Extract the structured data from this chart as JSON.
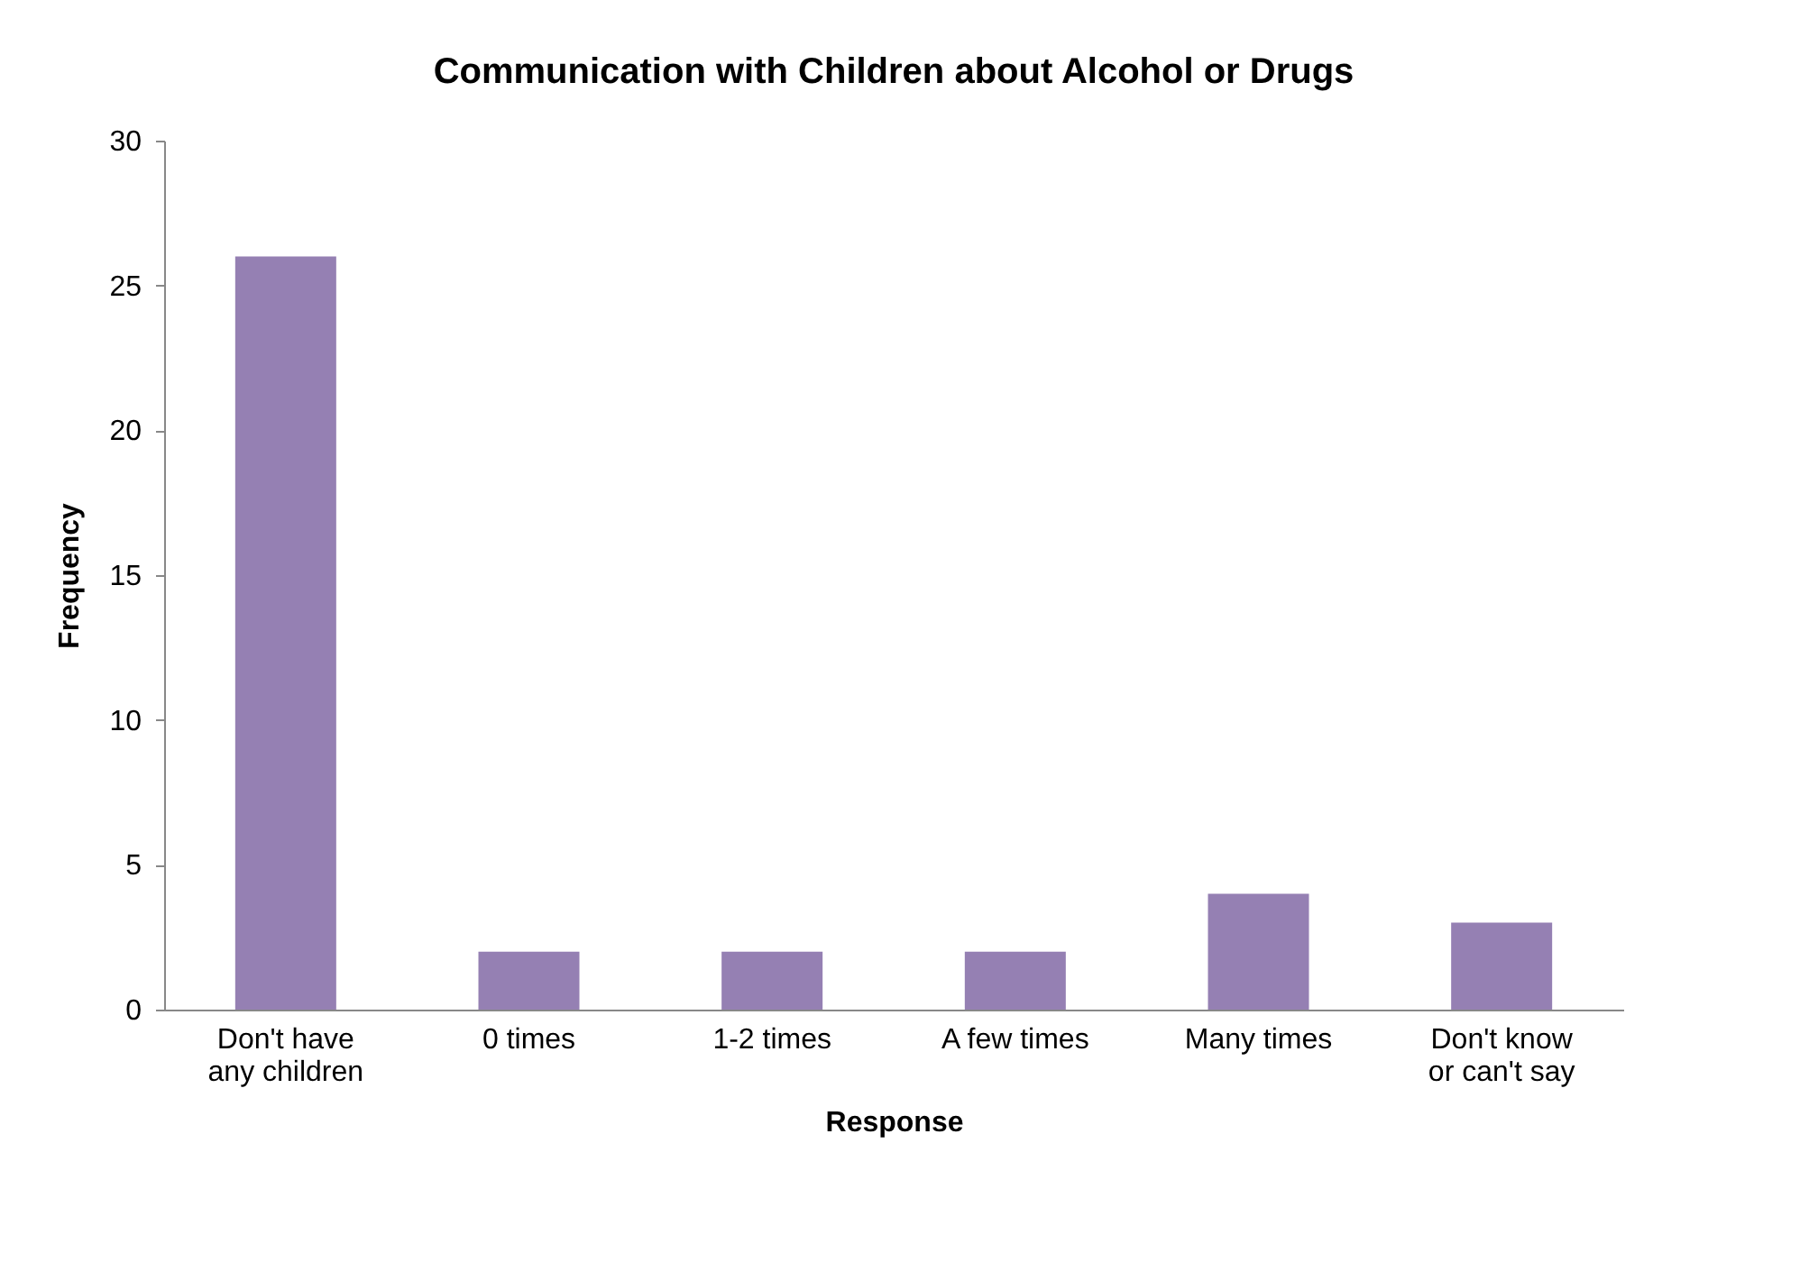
{
  "chart_data": {
    "type": "bar",
    "title": "Communication with Children about Alcohol or Drugs",
    "xlabel": "Response",
    "ylabel": "Frequency",
    "categories": [
      "Don't have any children",
      "0 times",
      "1-2 times",
      "A few times",
      "Many times",
      "Don't know or can't say"
    ],
    "values": [
      26,
      2,
      2,
      2,
      4,
      3
    ],
    "color": "#9580b3",
    "ylim": [
      0,
      30
    ],
    "yticks": [
      0,
      5,
      10,
      15,
      20,
      25,
      30
    ],
    "grid": false
  }
}
